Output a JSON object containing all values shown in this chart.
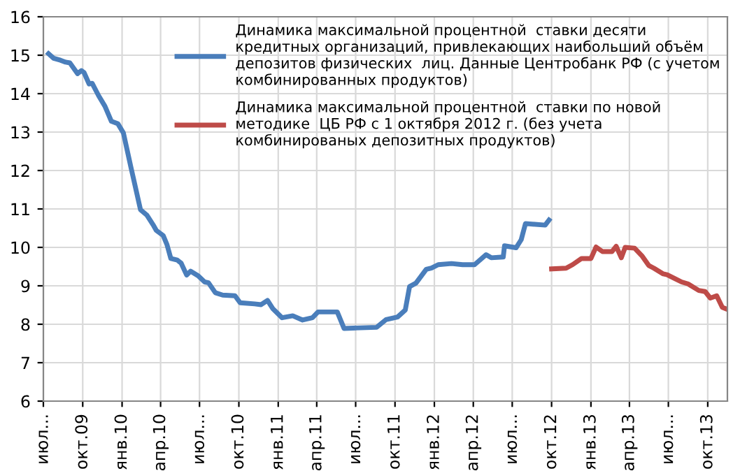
{
  "chart_data": {
    "type": "line",
    "xlim": [
      "2009-07-01",
      "2013-11-16"
    ],
    "ylim": [
      6,
      16
    ],
    "yticks": [
      6,
      7,
      8,
      9,
      10,
      11,
      12,
      13,
      14,
      15,
      16
    ],
    "xticks": [
      {
        "value": "2009-07-01",
        "label": "июл..."
      },
      {
        "value": "2009-10-01",
        "label": "окт.09"
      },
      {
        "value": "2010-01-01",
        "label": "янв.10"
      },
      {
        "value": "2010-04-01",
        "label": "апр.10"
      },
      {
        "value": "2010-07-01",
        "label": "июл..."
      },
      {
        "value": "2010-10-01",
        "label": "окт.10"
      },
      {
        "value": "2011-01-01",
        "label": "янв.11"
      },
      {
        "value": "2011-04-01",
        "label": "апр.11"
      },
      {
        "value": "2011-07-01",
        "label": "июл..."
      },
      {
        "value": "2011-10-01",
        "label": "окт.11"
      },
      {
        "value": "2012-01-01",
        "label": "янв.12"
      },
      {
        "value": "2012-04-01",
        "label": "апр.12"
      },
      {
        "value": "2012-07-01",
        "label": "июл..."
      },
      {
        "value": "2012-10-01",
        "label": "окт.12"
      },
      {
        "value": "2013-01-01",
        "label": "янв.13"
      },
      {
        "value": "2013-04-01",
        "label": "апр.13"
      },
      {
        "value": "2013-07-01",
        "label": "июл..."
      },
      {
        "value": "2013-10-01",
        "label": "окт.13"
      }
    ],
    "grid": true,
    "legend": "top right",
    "line_style": "solid",
    "marker": "none",
    "series": [
      {
        "name": "Динамика максимальной процентной  ставки десяти кредитных организаций, привлекающих наибольший объём депозитов физических  лиц. Данные Центробанк РФ (с учетом комбинированных продуктов)",
        "color": "#4a7ebb",
        "x": [
          "2009-07-13",
          "2009-07-25",
          "2009-08-10",
          "2009-08-22",
          "2009-09-01",
          "2009-09-19",
          "2009-09-28",
          "2009-10-04",
          "2009-10-16",
          "2009-10-23",
          "2009-11-07",
          "2009-11-22",
          "2009-12-07",
          "2009-12-22",
          "2010-01-04",
          "2010-01-22",
          "2010-02-13",
          "2010-02-28",
          "2010-03-16",
          "2010-03-22",
          "2010-04-07",
          "2010-04-16",
          "2010-04-25",
          "2010-05-10",
          "2010-05-19",
          "2010-06-01",
          "2010-06-10",
          "2010-06-28",
          "2010-07-13",
          "2010-07-22",
          "2010-08-07",
          "2010-08-24",
          "2010-09-22",
          "2010-10-04",
          "2010-11-07",
          "2010-11-22",
          "2010-12-07",
          "2010-12-19",
          "2011-01-10",
          "2011-02-04",
          "2011-02-27",
          "2011-03-22",
          "2011-04-04",
          "2011-05-19",
          "2011-06-04",
          "2011-06-25",
          "2011-08-19",
          "2011-09-10",
          "2011-10-07",
          "2011-10-25",
          "2011-11-04",
          "2011-11-19",
          "2011-12-13",
          "2011-12-25",
          "2012-01-10",
          "2012-02-10",
          "2012-03-07",
          "2012-04-04",
          "2012-05-01",
          "2012-05-13",
          "2012-06-10",
          "2012-06-13",
          "2012-07-10",
          "2012-07-22",
          "2012-08-01",
          "2012-09-16",
          "2012-09-25"
        ],
        "values": [
          15.04,
          14.92,
          14.87,
          14.82,
          14.8,
          14.52,
          14.6,
          14.55,
          14.25,
          14.27,
          13.95,
          13.67,
          13.28,
          13.22,
          12.98,
          12.07,
          10.98,
          10.84,
          10.56,
          10.44,
          10.31,
          10.07,
          9.71,
          9.67,
          9.59,
          9.28,
          9.38,
          9.26,
          9.1,
          9.08,
          8.82,
          8.76,
          8.74,
          8.56,
          8.53,
          8.51,
          8.62,
          8.41,
          8.17,
          8.22,
          8.11,
          8.17,
          8.32,
          8.32,
          7.89,
          7.9,
          7.92,
          8.12,
          8.19,
          8.37,
          8.98,
          9.07,
          9.43,
          9.46,
          9.55,
          9.58,
          9.55,
          9.55,
          9.81,
          9.73,
          9.75,
          10.04,
          9.99,
          10.2,
          10.62,
          10.58,
          10.71
        ]
      },
      {
        "name": "Динамика максимальной процентной  ставки по новой методике  ЦБ РФ с 1 октября 2012 г. (без учета комбинированых депозитных продуктов)",
        "color": "#be4b48",
        "x": [
          "2012-10-01",
          "2012-11-04",
          "2012-11-19",
          "2012-12-10",
          "2013-01-01",
          "2013-01-13",
          "2013-01-28",
          "2013-02-19",
          "2013-03-01",
          "2013-03-13",
          "2013-03-22",
          "2013-04-13",
          "2013-05-01",
          "2013-05-16",
          "2013-05-28",
          "2013-06-19",
          "2013-06-28",
          "2013-07-16",
          "2013-08-01",
          "2013-08-16",
          "2013-09-10",
          "2013-09-25",
          "2013-10-07",
          "2013-10-22",
          "2013-11-04",
          "2013-11-13"
        ],
        "values": [
          9.44,
          9.46,
          9.55,
          9.71,
          9.71,
          10.01,
          9.89,
          9.89,
          10.03,
          9.73,
          10.0,
          9.98,
          9.77,
          9.53,
          9.46,
          9.31,
          9.29,
          9.19,
          9.1,
          9.05,
          8.88,
          8.85,
          8.68,
          8.74,
          8.44,
          8.4
        ]
      }
    ]
  }
}
